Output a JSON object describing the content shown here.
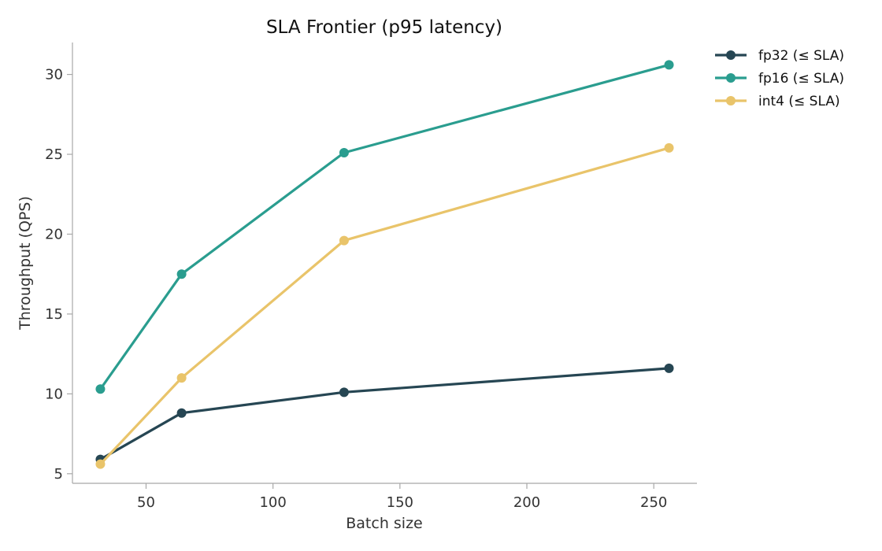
{
  "chart_data": {
    "type": "line",
    "title": "SLA Frontier (p95 latency)",
    "xlabel": "Batch size",
    "ylabel": "Throughput (QPS)",
    "xlim": [
      21,
      267
    ],
    "ylim": [
      4.4,
      32.0
    ],
    "xticks": [
      50,
      100,
      150,
      200,
      250
    ],
    "yticks": [
      5,
      10,
      15,
      20,
      25,
      30
    ],
    "grid": false,
    "legend_position": "outside-top-right",
    "series": [
      {
        "name": "fp32 (≤ SLA)",
        "color": "#264653",
        "x": [
          32,
          64,
          128,
          256
        ],
        "y": [
          5.9,
          8.8,
          10.1,
          11.6
        ]
      },
      {
        "name": "fp16 (≤ SLA)",
        "color": "#2a9d8f",
        "x": [
          32,
          64,
          128,
          256
        ],
        "y": [
          10.3,
          17.5,
          25.1,
          30.6
        ]
      },
      {
        "name": "int4 (≤ SLA)",
        "color": "#e9c46a",
        "x": [
          32,
          64,
          128,
          256
        ],
        "y": [
          5.6,
          11.0,
          19.6,
          25.4
        ]
      }
    ]
  }
}
